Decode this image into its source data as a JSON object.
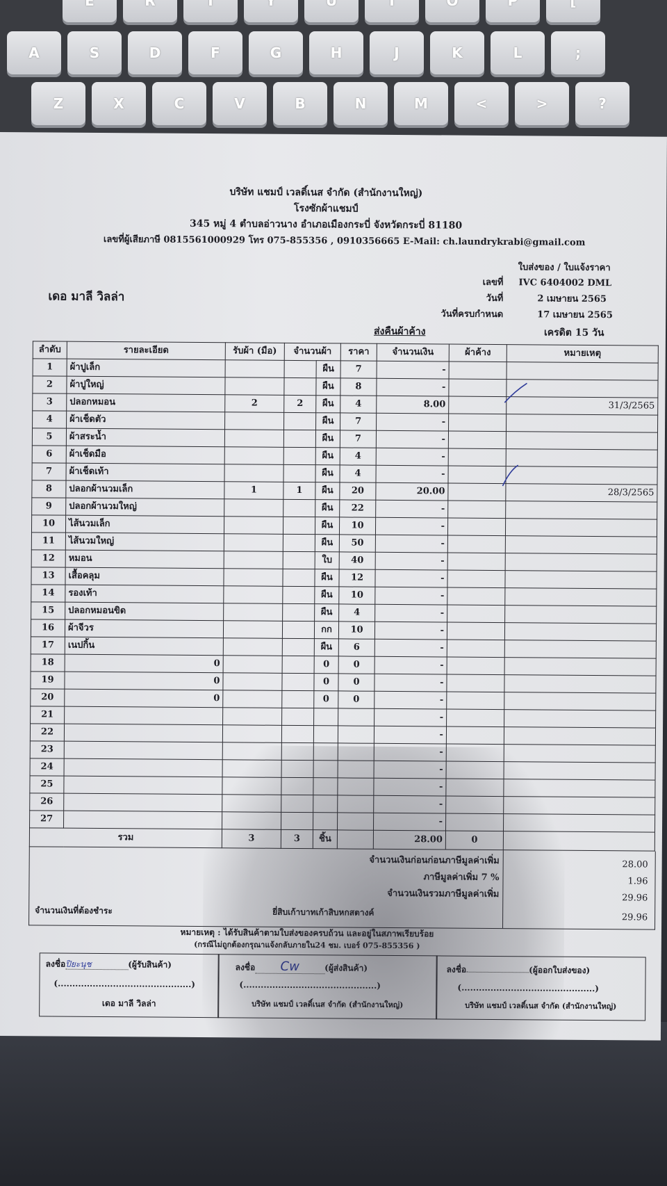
{
  "keyboard": {
    "rows": [
      [
        "E",
        "R",
        "T",
        "Y",
        "U",
        "I",
        "O",
        "P",
        "["
      ],
      [
        "A",
        "S",
        "D",
        "F",
        "G",
        "H",
        "J",
        "K",
        "L",
        ";"
      ],
      [
        "Z",
        "X",
        "C",
        "V",
        "B",
        "N",
        "M",
        "<",
        ">",
        "?"
      ]
    ]
  },
  "header": {
    "company": "บริษัท แชมป์ เวลดิ์เนส จำกัด (สำนักงานใหญ่)",
    "plant": "โรงซักผ้าแชมป์",
    "address": "345 หมู่ 4 ตำบลอ่าวนาง อำเภอเมืองกระบี่ จังหวัดกระบี่ 81180",
    "contact": "เลขที่ผู้เสียภาษี 0815561000929 โทร 075-855356 , 0910356665 E-Mail: ch.laundrykrabi@gmail.com",
    "doc_type": "ใบส่งของ / ใบแจ้งราคา"
  },
  "customer": "เดอ มาลี วิลล่า",
  "meta": {
    "no_label": "เลขที่",
    "no": "IVC 6404002 DML",
    "date_label": "วันที่",
    "date": "2 เมษายน 2565",
    "due_label": "วันที่ครบกำหนด",
    "due": "17 เมษายน 2565",
    "return_label": "ส่งคืนผ้าค้าง",
    "credit": "เครดิต 15 วัน"
  },
  "table": {
    "headers": [
      "ลำดับ",
      "รายละเอียด",
      "รับผ้า (มือ)",
      "จำนวนผ้า",
      "ราคา",
      "จำนวนเงิน",
      "ผ้าค้าง",
      "หมายเหตุ"
    ],
    "rows": [
      {
        "no": "1",
        "desc": "ผ้าปูเล็ก",
        "recv": "",
        "qty": "",
        "unit": "ผืน",
        "price": "7",
        "amount": "-",
        "pending": "",
        "note": ""
      },
      {
        "no": "2",
        "desc": "ผ้าปูใหญ่",
        "recv": "",
        "qty": "",
        "unit": "ผืน",
        "price": "8",
        "amount": "-",
        "pending": "",
        "note": ""
      },
      {
        "no": "3",
        "desc": "ปลอกหมอน",
        "recv": "2",
        "qty": "2",
        "unit": "ผืน",
        "price": "4",
        "amount": "8.00",
        "pending": "",
        "note": "31/3/2565"
      },
      {
        "no": "4",
        "desc": "ผ้าเช็ดตัว",
        "recv": "",
        "qty": "",
        "unit": "ผืน",
        "price": "7",
        "amount": "-",
        "pending": "",
        "note": ""
      },
      {
        "no": "5",
        "desc": "ผ้าสระน้ำ",
        "recv": "",
        "qty": "",
        "unit": "ผืน",
        "price": "7",
        "amount": "-",
        "pending": "",
        "note": ""
      },
      {
        "no": "6",
        "desc": "ผ้าเช็ดมือ",
        "recv": "",
        "qty": "",
        "unit": "ผืน",
        "price": "4",
        "amount": "-",
        "pending": "",
        "note": ""
      },
      {
        "no": "7",
        "desc": "ผ้าเช็ดเท้า",
        "recv": "",
        "qty": "",
        "unit": "ผืน",
        "price": "4",
        "amount": "-",
        "pending": "",
        "note": ""
      },
      {
        "no": "8",
        "desc": "ปลอกผ้านวมเล็ก",
        "recv": "1",
        "qty": "1",
        "unit": "ผืน",
        "price": "20",
        "amount": "20.00",
        "pending": "",
        "note": "28/3/2565"
      },
      {
        "no": "9",
        "desc": "ปลอกผ้านวมใหญ่",
        "recv": "",
        "qty": "",
        "unit": "ผืน",
        "price": "22",
        "amount": "-",
        "pending": "",
        "note": ""
      },
      {
        "no": "10",
        "desc": "ไส้นวมเล็ก",
        "recv": "",
        "qty": "",
        "unit": "ผืน",
        "price": "10",
        "amount": "-",
        "pending": "",
        "note": ""
      },
      {
        "no": "11",
        "desc": "ไส้นวมใหญ่",
        "recv": "",
        "qty": "",
        "unit": "ผืน",
        "price": "50",
        "amount": "-",
        "pending": "",
        "note": ""
      },
      {
        "no": "12",
        "desc": "หมอน",
        "recv": "",
        "qty": "",
        "unit": "ใบ",
        "price": "40",
        "amount": "-",
        "pending": "",
        "note": ""
      },
      {
        "no": "13",
        "desc": "เสื้อคลุม",
        "recv": "",
        "qty": "",
        "unit": "ผืน",
        "price": "12",
        "amount": "-",
        "pending": "",
        "note": ""
      },
      {
        "no": "14",
        "desc": "รองเท้า",
        "recv": "",
        "qty": "",
        "unit": "ผืน",
        "price": "10",
        "amount": "-",
        "pending": "",
        "note": ""
      },
      {
        "no": "15",
        "desc": "ปลอกหมอนขิด",
        "recv": "",
        "qty": "",
        "unit": "ผืน",
        "price": "4",
        "amount": "-",
        "pending": "",
        "note": ""
      },
      {
        "no": "16",
        "desc": "ผ้าจีวร",
        "recv": "",
        "qty": "",
        "unit": "กก",
        "price": "10",
        "amount": "-",
        "pending": "",
        "note": ""
      },
      {
        "no": "17",
        "desc": "เนปกิ้น",
        "recv": "",
        "qty": "",
        "unit": "ผืน",
        "price": "6",
        "amount": "-",
        "pending": "",
        "note": ""
      },
      {
        "no": "18",
        "desc": "0",
        "recv": "",
        "qty": "",
        "unit": "0",
        "price": "0",
        "amount": "-",
        "pending": "",
        "note": ""
      },
      {
        "no": "19",
        "desc": "0",
        "recv": "",
        "qty": "",
        "unit": "0",
        "price": "0",
        "amount": "-",
        "pending": "",
        "note": ""
      },
      {
        "no": "20",
        "desc": "0",
        "recv": "",
        "qty": "",
        "unit": "0",
        "price": "0",
        "amount": "-",
        "pending": "",
        "note": ""
      },
      {
        "no": "21",
        "desc": "",
        "recv": "",
        "qty": "",
        "unit": "",
        "price": "",
        "amount": "-",
        "pending": "",
        "note": ""
      },
      {
        "no": "22",
        "desc": "",
        "recv": "",
        "qty": "",
        "unit": "",
        "price": "",
        "amount": "-",
        "pending": "",
        "note": ""
      },
      {
        "no": "23",
        "desc": "",
        "recv": "",
        "qty": "",
        "unit": "",
        "price": "",
        "amount": "-",
        "pending": "",
        "note": ""
      },
      {
        "no": "24",
        "desc": "",
        "recv": "",
        "qty": "",
        "unit": "",
        "price": "",
        "amount": "-",
        "pending": "",
        "note": ""
      },
      {
        "no": "25",
        "desc": "",
        "recv": "",
        "qty": "",
        "unit": "",
        "price": "",
        "amount": "-",
        "pending": "",
        "note": ""
      },
      {
        "no": "26",
        "desc": "",
        "recv": "",
        "qty": "",
        "unit": "",
        "price": "",
        "amount": "-",
        "pending": "",
        "note": ""
      },
      {
        "no": "27",
        "desc": "",
        "recv": "",
        "qty": "",
        "unit": "",
        "price": "",
        "amount": "-",
        "pending": "",
        "note": ""
      }
    ],
    "total": {
      "label": "รวม",
      "recv": "3",
      "qty": "3",
      "unit": "ชิ้น",
      "amount": "28.00",
      "pending": "0"
    }
  },
  "summary": {
    "subtotal_label": "จำนวนเงินก่อนก่อนภาษีมูลค่าเพิ่ม",
    "subtotal": "28.00",
    "vat_label": "ภาษีมูลค่าเพิ่ม 7 %",
    "vat": "1.96",
    "grand_label": "จำนวนเงินรวมภาษีมูลค่าเพิ่ม",
    "grand": "29.96",
    "due_label": "จำนวนเงินที่ต้องชำระ",
    "due_words": "ยี่สิบเก้าบาทเก้าสิบหกสตางค์",
    "due": "29.96"
  },
  "notes": {
    "line1": "หมายเหตุ : ได้รับสินค้าตามใบส่งของครบถ้วน และอยู่ในสภาพเรียบร้อย",
    "line2": "(กรณีไม่ถูกต้องกรุณาแจ้งกลับภายใน24 ชม. เบอร์ 075-855356 )"
  },
  "signatures": [
    {
      "sign_label": "ลงชื่อ",
      "role": "(ผู้รับสินค้า)",
      "paren": "(..............................................)",
      "org": "เดอ มาลี วิลล่า",
      "handwriting": "ปิยะนุช"
    },
    {
      "sign_label": "ลงชื่อ",
      "role": "(ผู้ส่งสินค้า)",
      "paren": "(..............................................)",
      "org": "บริษัท แชมป์ เวลดิ์เนส จำกัด (สำนักงานใหญ่)",
      "handwriting": "Cw"
    },
    {
      "sign_label": "ลงชื่อ",
      "role": "(ผู้ออกใบส่งของ)",
      "paren": "(..............................................)",
      "org": "บริษัท แชมป์ เวลดิ์เนส จำกัด (สำนักงานใหญ่)",
      "handwriting": ""
    }
  ]
}
